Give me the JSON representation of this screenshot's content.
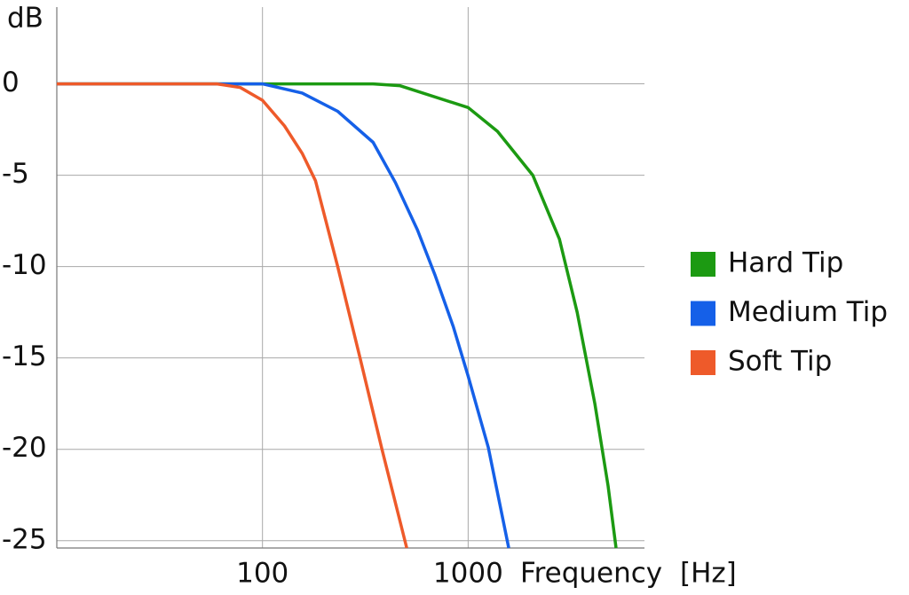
{
  "chart_data": {
    "type": "line",
    "y_label": "dB",
    "x_label": "Frequency [Hz]",
    "log_x": true,
    "grid": true,
    "legend": "right",
    "xlim": [
      10,
      7200
    ],
    "xticks": [
      100,
      1000
    ],
    "ylim": [
      -25.4,
      4.2
    ],
    "yticks": [
      0,
      -5,
      -10,
      -15,
      -20,
      -25
    ],
    "series": [
      {
        "name": "Hard Tip",
        "color": "#1c9a12",
        "x": [
          10,
          345,
          465,
          1000,
          1389,
          2063,
          2780,
          3390,
          4130,
          4790,
          5240
        ],
        "values": [
          0,
          0,
          -0.1,
          -1.3,
          -2.6,
          -5,
          -8.5,
          -12.5,
          -17.5,
          -22,
          -25.4
        ]
      },
      {
        "name": "Medium Tip",
        "color": "#1560e8",
        "x": [
          10,
          100,
          156,
          232,
          345,
          443,
          567,
          692,
          847,
          1000,
          1254,
          1576
        ],
        "values": [
          0,
          0,
          -0.5,
          -1.5,
          -3.2,
          -5.4,
          -8,
          -10.5,
          -13.3,
          -16,
          -19.9,
          -25.4
        ]
      },
      {
        "name": "Soft Tip",
        "color": "#ee5a2a",
        "x": [
          10,
          60,
          78,
          100,
          128,
          156,
          181,
          232,
          298,
          381,
          503
        ],
        "values": [
          0,
          0,
          -0.2,
          -0.9,
          -2.3,
          -3.8,
          -5.3,
          -10,
          -15,
          -20,
          -25.4
        ]
      }
    ]
  }
}
